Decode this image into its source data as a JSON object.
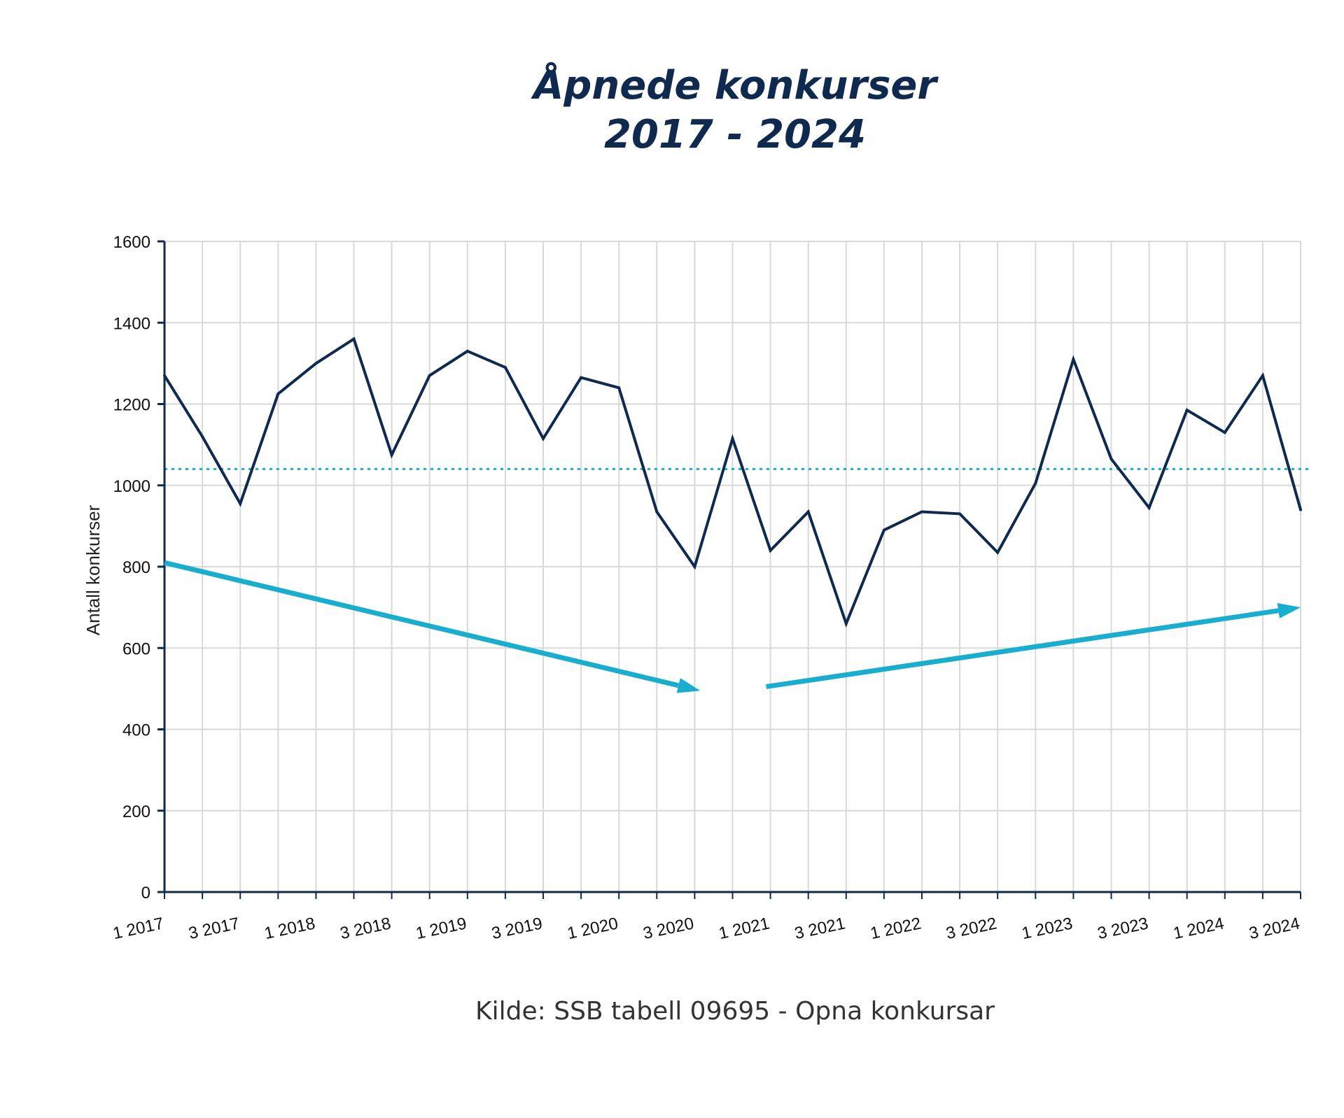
{
  "title_line1": "Åpnede konkurser",
  "title_line2": "2017 - 2024",
  "source": "Kilde: SSB tabell 09695 - Opna konkursar",
  "colors": {
    "series": "#0f2a4e",
    "reference": "#1ab6cc",
    "arrows": "#19aed0",
    "grid": "#d9d9d9",
    "axis": "#0f2a4e"
  },
  "chart_data": {
    "type": "line",
    "title": "Åpnede konkurser 2017 - 2024",
    "ylabel": "Antall konkurser",
    "xlabel": "",
    "ylim": [
      0,
      1600
    ],
    "yticks": [
      0,
      200,
      400,
      600,
      800,
      1000,
      1200,
      1400,
      1600
    ],
    "grid": true,
    "x": [
      "1 2017",
      "2 2017",
      "3 2017",
      "4 2017",
      "1 2018",
      "2 2018",
      "3 2018",
      "4 2018",
      "1 2019",
      "2 2019",
      "3 2019",
      "4 2019",
      "1 2020",
      "2 2020",
      "3 2020",
      "4 2020",
      "1 2021",
      "2 2021",
      "3 2021",
      "4 2021",
      "1 2022",
      "2 2022",
      "3 2022",
      "4 2022",
      "1 2023",
      "2 2023",
      "3 2023",
      "4 2023",
      "1 2024",
      "2 2024",
      "3 2024"
    ],
    "xtick_labels": [
      "1 2017",
      "3 2017",
      "1 2018",
      "3 2018",
      "1 2019",
      "3 2019",
      "1 2020",
      "3 2020",
      "1 2021",
      "3 2021",
      "1 2022",
      "3 2022",
      "1 2023",
      "3 2023",
      "1 2024",
      "3 2024"
    ],
    "series": [
      {
        "values": [
          1270,
          1120,
          955,
          1225,
          1300,
          1360,
          1075,
          1270,
          1330,
          1290,
          1115,
          1265,
          1240,
          935,
          800,
          1115,
          840,
          935,
          660,
          890,
          935,
          930,
          835,
          1005,
          1310,
          1065,
          945,
          1185,
          1130,
          1270,
          940
        ]
      }
    ],
    "reference_line": {
      "y": 1040,
      "style": "dotted"
    },
    "annotations": [
      {
        "type": "trend-arrow",
        "direction": "down",
        "from": [
          "1 2017",
          810
        ],
        "to": [
          "3 2020",
          495
        ]
      },
      {
        "type": "trend-arrow",
        "direction": "up",
        "from": [
          "1 2021",
          505
        ],
        "to": [
          "3 2024",
          700
        ]
      }
    ]
  }
}
